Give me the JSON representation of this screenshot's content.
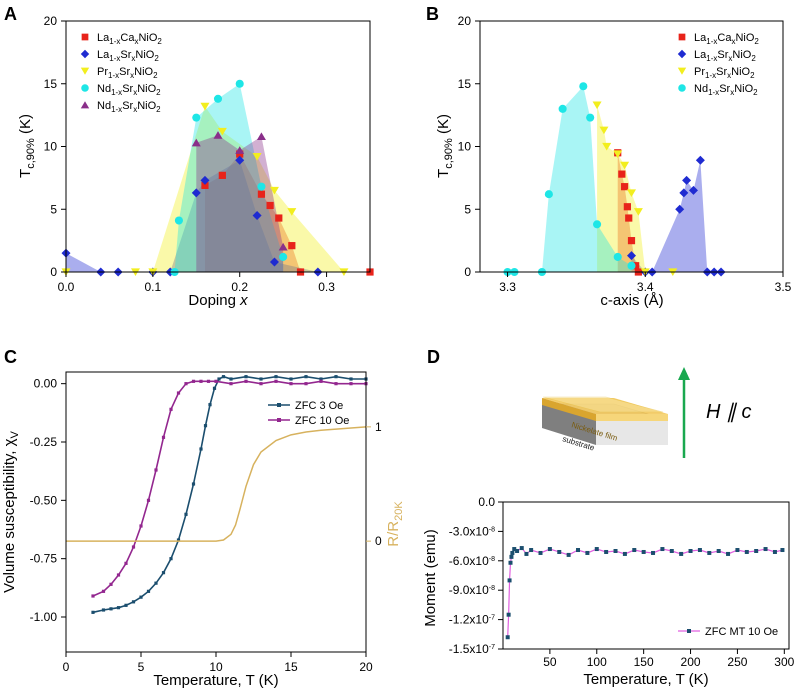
{
  "colors": {
    "la_ca": "#e8231a",
    "la_sr": "#1f2bd1",
    "pr_sr": "#f2ee1e",
    "nd_sr_a": "#1ee6e6",
    "nd_sr_b": "#8a2f8a",
    "c_3oe": "#1b4e6e",
    "c_10oe": "#93278f",
    "c_rr": "#d7b25e",
    "c_moment": "#1b4e6e",
    "c_moment_line": "#e060e0",
    "arrow": "#19a84f"
  },
  "panels": {
    "A": {
      "letter": "A",
      "xlabel_main": "Doping ",
      "xlabel_var": "x",
      "ylabel": "T",
      "ylabel_sub": "c,90%",
      "ylabel_unit": " (K)"
    },
    "B": {
      "letter": "B",
      "xlabel": "c-axis (Å)",
      "ylabel": "T",
      "ylabel_sub": "c,90%",
      "ylabel_unit": " (K)"
    },
    "C": {
      "letter": "C",
      "xlabel": "Temperature, T (K)",
      "ylabel": "Volume susceptibility, χ",
      "ylabel_sub": "V",
      "ylabel2": "R/R",
      "ylabel2_sub": "20K"
    },
    "D": {
      "letter": "D",
      "xlabel": "Temperature, T (K)",
      "ylabel": "Moment (emu)",
      "film_label": "Nickelate film",
      "substrate_label": "substrate",
      "field_label": "H ∥ c"
    }
  },
  "chart_data": [
    {
      "id": "A",
      "type": "scatter",
      "title": "",
      "xlabel": "Doping x",
      "ylabel": "Tc,90% (K)",
      "xlim": [
        0,
        0.35
      ],
      "ylim": [
        0,
        20
      ],
      "xticks": [
        "0.0",
        "0.1",
        "0.2",
        "0.3"
      ],
      "xtick_values": [
        0,
        0.1,
        0.2,
        0.3
      ],
      "yticks": [
        "0",
        "5",
        "10",
        "15",
        "20"
      ],
      "ytick_values": [
        0,
        5,
        10,
        15,
        20
      ],
      "legend_position": "top-left",
      "series": [
        {
          "name": "La1-xCaxNiO2",
          "name_main": [
            "La",
            "Ca",
            "NiO"
          ],
          "name_sub": [
            "1-x",
            "x",
            "2"
          ],
          "marker": "square",
          "color_key": "la_ca",
          "points": [
            [
              0.16,
              6.9
            ],
            [
              0.18,
              7.7
            ],
            [
              0.2,
              9.4
            ],
            [
              0.225,
              6.2
            ],
            [
              0.235,
              5.3
            ],
            [
              0.245,
              4.3
            ],
            [
              0.26,
              2.1
            ],
            [
              0.27,
              0.0
            ],
            [
              0.35,
              0.0
            ]
          ]
        },
        {
          "name": "La1-xSrxNiO2",
          "name_main": [
            "La",
            "Sr",
            "NiO"
          ],
          "name_sub": [
            "1-x",
            "x",
            "2"
          ],
          "marker": "diamond",
          "color_key": "la_sr",
          "points": [
            [
              0.0,
              1.5
            ],
            [
              0.04,
              0.0
            ],
            [
              0.06,
              0.0
            ],
            [
              0.1,
              0.0
            ],
            [
              0.12,
              0.0
            ],
            [
              0.15,
              6.3
            ],
            [
              0.16,
              7.3
            ],
            [
              0.2,
              8.9
            ],
            [
              0.22,
              4.5
            ],
            [
              0.24,
              0.8
            ],
            [
              0.29,
              0.0
            ]
          ]
        },
        {
          "name": "Pr1-xSrxNiO2",
          "name_main": [
            "Pr",
            "Sr",
            "NiO"
          ],
          "name_sub": [
            "1-x",
            "x",
            "2"
          ],
          "marker": "triangle-down",
          "color_key": "pr_sr",
          "points": [
            [
              0.0,
              0.0
            ],
            [
              0.08,
              0.0
            ],
            [
              0.1,
              0.0
            ],
            [
              0.16,
              13.2
            ],
            [
              0.18,
              11.2
            ],
            [
              0.22,
              9.2
            ],
            [
              0.24,
              6.5
            ],
            [
              0.26,
              4.8
            ],
            [
              0.32,
              0.0
            ]
          ]
        },
        {
          "name": "Nd1-xSrxNiO2",
          "name_main": [
            "Nd",
            "Sr",
            "NiO"
          ],
          "name_sub": [
            "1-x",
            "x",
            "2"
          ],
          "marker": "circle",
          "color_key": "nd_sr_a",
          "points": [
            [
              0.125,
              0.0
            ],
            [
              0.13,
              4.1
            ],
            [
              0.15,
              12.3
            ],
            [
              0.175,
              13.8
            ],
            [
              0.2,
              15.0
            ],
            [
              0.225,
              6.8
            ],
            [
              0.25,
              1.2
            ]
          ]
        },
        {
          "name": "Nd1-xSrxNiO2",
          "name_main": [
            "Nd",
            "Sr",
            "NiO"
          ],
          "name_sub": [
            "1-x",
            "x",
            "2"
          ],
          "marker": "triangle-up",
          "color_key": "nd_sr_b",
          "points": [
            [
              0.15,
              10.3
            ],
            [
              0.175,
              10.9
            ],
            [
              0.2,
              9.7
            ],
            [
              0.225,
              10.8
            ],
            [
              0.25,
              2.0
            ]
          ]
        }
      ]
    },
    {
      "id": "B",
      "type": "scatter",
      "title": "",
      "xlabel": "c-axis (Å)",
      "ylabel": "Tc,90% (K)",
      "xlim": [
        3.28,
        3.5
      ],
      "ylim": [
        0,
        20
      ],
      "xticks": [
        "3.3",
        "3.4",
        "3.5"
      ],
      "xtick_values": [
        3.3,
        3.4,
        3.5
      ],
      "yticks": [
        "0",
        "5",
        "10",
        "15",
        "20"
      ],
      "ytick_values": [
        0,
        5,
        10,
        15,
        20
      ],
      "legend_position": "top-right",
      "series": [
        {
          "name": "La1-xCaxNiO2",
          "name_main": [
            "La",
            "Ca",
            "NiO"
          ],
          "name_sub": [
            "1-x",
            "x",
            "2"
          ],
          "marker": "square",
          "color_key": "la_ca",
          "points": [
            [
              3.38,
              9.5
            ],
            [
              3.383,
              7.8
            ],
            [
              3.385,
              6.8
            ],
            [
              3.387,
              5.2
            ],
            [
              3.388,
              4.3
            ],
            [
              3.39,
              2.5
            ],
            [
              3.393,
              0.5
            ],
            [
              3.395,
              0.0
            ]
          ]
        },
        {
          "name": "La1-xSrxNiO2",
          "name_main": [
            "La",
            "Sr",
            "NiO"
          ],
          "name_sub": [
            "1-x",
            "x",
            "2"
          ],
          "marker": "diamond",
          "color_key": "la_sr",
          "points": [
            [
              3.39,
              1.3
            ],
            [
              3.4,
              0.0
            ],
            [
              3.405,
              0.0
            ],
            [
              3.425,
              5.0
            ],
            [
              3.428,
              6.3
            ],
            [
              3.43,
              7.3
            ],
            [
              3.435,
              6.5
            ],
            [
              3.44,
              8.9
            ],
            [
              3.445,
              0.0
            ],
            [
              3.45,
              0.0
            ],
            [
              3.455,
              0.0
            ]
          ]
        },
        {
          "name": "Pr1-xSrxNiO2",
          "name_main": [
            "Pr",
            "Sr",
            "NiO"
          ],
          "name_sub": [
            "1-x",
            "x",
            "2"
          ],
          "marker": "triangle-down",
          "color_key": "pr_sr",
          "points": [
            [
              3.365,
              13.3
            ],
            [
              3.37,
              11.3
            ],
            [
              3.372,
              10.0
            ],
            [
              3.38,
              9.4
            ],
            [
              3.385,
              8.5
            ],
            [
              3.39,
              6.3
            ],
            [
              3.395,
              4.8
            ],
            [
              3.4,
              0.0
            ],
            [
              3.42,
              0.0
            ]
          ]
        },
        {
          "name": "Nd1-xSrxNiO2",
          "name_main": [
            "Nd",
            "Sr",
            "NiO"
          ],
          "name_sub": [
            "1-x",
            "x",
            "2"
          ],
          "marker": "circle",
          "color_key": "nd_sr_a",
          "points": [
            [
              3.3,
              0.0
            ],
            [
              3.305,
              0.0
            ],
            [
              3.325,
              0.0
            ],
            [
              3.33,
              6.2
            ],
            [
              3.34,
              13.0
            ],
            [
              3.355,
              14.8
            ],
            [
              3.36,
              12.3
            ],
            [
              3.365,
              3.8
            ],
            [
              3.38,
              1.2
            ],
            [
              3.39,
              0.5
            ]
          ]
        }
      ]
    },
    {
      "id": "C",
      "type": "line",
      "title": "",
      "xlabel": "Temperature, T (K)",
      "ylabel": "Volume susceptibility, χV",
      "ylabel2": "R/R20K",
      "xlim": [
        0,
        20
      ],
      "ylim": [
        -1.15,
        0.05
      ],
      "xticks": [
        "0",
        "5",
        "10",
        "15",
        "20"
      ],
      "xtick_values": [
        0,
        5,
        10,
        15,
        20
      ],
      "yticks": [
        "0.00",
        "-0.25",
        "-0.50",
        "-0.75",
        "-1.00"
      ],
      "ytick_values": [
        0,
        -0.25,
        -0.5,
        -0.75,
        -1.0
      ],
      "y2ticks": [
        "0",
        "1"
      ],
      "y2tick_values": [
        0,
        1
      ],
      "y2lim": [
        -0.97,
        1.48
      ],
      "legend_position": "top-right",
      "series": [
        {
          "name": "ZFC 3 Oe",
          "color_key": "c_3oe",
          "marker": "square",
          "x": [
            1.8,
            2.5,
            3.0,
            3.5,
            4.0,
            4.5,
            5.0,
            5.5,
            6.0,
            6.5,
            7.0,
            7.5,
            8.0,
            8.5,
            9.0,
            9.3,
            9.6,
            9.9,
            10.2,
            10.5,
            11,
            12,
            13,
            14,
            15,
            16,
            17,
            18,
            19,
            20
          ],
          "y": [
            -0.98,
            -0.97,
            -0.965,
            -0.96,
            -0.95,
            -0.935,
            -0.915,
            -0.89,
            -0.855,
            -0.81,
            -0.75,
            -0.67,
            -0.56,
            -0.43,
            -0.28,
            -0.18,
            -0.09,
            -0.02,
            0.02,
            0.03,
            0.02,
            0.03,
            0.02,
            0.03,
            0.02,
            0.03,
            0.02,
            0.03,
            0.02,
            0.02
          ]
        },
        {
          "name": "ZFC 10 Oe",
          "color_key": "c_10oe",
          "marker": "square",
          "x": [
            1.8,
            2.5,
            3.0,
            3.5,
            4.0,
            4.5,
            5.0,
            5.5,
            6.0,
            6.5,
            7.0,
            7.5,
            8.0,
            8.5,
            9.0,
            9.5,
            10,
            11,
            12,
            13,
            14,
            15,
            16,
            17,
            18,
            19,
            20
          ],
          "y": [
            -0.91,
            -0.89,
            -0.86,
            -0.82,
            -0.77,
            -0.7,
            -0.61,
            -0.5,
            -0.37,
            -0.23,
            -0.11,
            -0.04,
            0.0,
            0.01,
            0.01,
            0.01,
            0.01,
            0.0,
            0.01,
            0.0,
            0.01,
            0.0,
            0.0,
            0.01,
            0.0,
            0.0,
            0.0
          ]
        },
        {
          "name": "R/R20K",
          "color_key": "c_rr",
          "axis": "right",
          "x": [
            0,
            2,
            4,
            6,
            8,
            10,
            10.5,
            11,
            11.3,
            11.6,
            12,
            12.5,
            13,
            14,
            15,
            16,
            17,
            18,
            19,
            20
          ],
          "y": [
            0.0,
            0.0,
            0.0,
            0.0,
            0.0,
            0.0,
            0.01,
            0.06,
            0.14,
            0.28,
            0.48,
            0.67,
            0.78,
            0.88,
            0.93,
            0.955,
            0.97,
            0.98,
            0.99,
            1.0
          ]
        }
      ]
    },
    {
      "id": "D",
      "type": "line",
      "title": "",
      "xlabel": "Temperature, T (K)",
      "ylabel": "Moment (emu)",
      "xlim": [
        0,
        305
      ],
      "ylim": [
        -1.5e-07,
        0
      ],
      "xticks": [
        "50",
        "100",
        "150",
        "200",
        "250",
        "300"
      ],
      "xtick_values": [
        50,
        100,
        150,
        200,
        250,
        300
      ],
      "yticks": [
        "0.0",
        "-3.0x10-8",
        "-6.0x10-8",
        "-9.0x10-8",
        "-1.2x10-7",
        "-1.5x10-7"
      ],
      "ytick_values": [
        0,
        -3e-08,
        -6e-08,
        -9e-08,
        -1.2e-07,
        -1.5e-07
      ],
      "legend_position": "bottom-right",
      "series": [
        {
          "name": "ZFC MT 10 Oe",
          "color_key": "c_moment",
          "line_color_key": "c_moment_line",
          "marker": "square",
          "x": [
            5,
            6,
            7,
            8,
            9,
            10,
            12,
            15,
            20,
            25,
            30,
            40,
            50,
            60,
            70,
            80,
            90,
            100,
            110,
            120,
            130,
            140,
            150,
            160,
            170,
            180,
            190,
            200,
            210,
            220,
            230,
            240,
            250,
            260,
            270,
            280,
            290,
            298
          ],
          "y": [
            -1.38e-07,
            -1.15e-07,
            -8e-08,
            -6.2e-08,
            -5.6e-08,
            -5.2e-08,
            -4.8e-08,
            -5e-08,
            -4.7e-08,
            -5.3e-08,
            -4.9e-08,
            -5.2e-08,
            -4.8e-08,
            -5.1e-08,
            -5.4e-08,
            -4.9e-08,
            -5.2e-08,
            -4.8e-08,
            -5.1e-08,
            -5e-08,
            -5.3e-08,
            -4.9e-08,
            -5.1e-08,
            -5.2e-08,
            -4.8e-08,
            -5e-08,
            -5.3e-08,
            -5e-08,
            -4.9e-08,
            -5.2e-08,
            -5e-08,
            -5.3e-08,
            -4.9e-08,
            -5.1e-08,
            -5e-08,
            -4.8e-08,
            -5.1e-08,
            -4.9e-08
          ]
        }
      ]
    }
  ]
}
